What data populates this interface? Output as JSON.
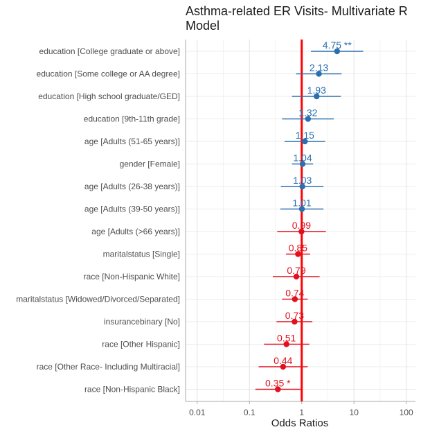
{
  "chart_data": {
    "type": "forest",
    "title": "Asthma-related ER Visits- Multivariate R\nModel",
    "xlabel": "Odds Ratios",
    "x_scale": "log",
    "xlim": [
      0.006,
      150
    ],
    "x_ticks": [
      {
        "value": 0.01,
        "label": "0.01"
      },
      {
        "value": 0.1,
        "label": "0.1"
      },
      {
        "value": 1,
        "label": "1"
      },
      {
        "value": 10,
        "label": "10"
      },
      {
        "value": 100,
        "label": "100"
      }
    ],
    "reference_line": 1,
    "grid": true,
    "colors": {
      "positive": "#2a6fb0",
      "negative": "#e0101e",
      "reference": "#ff0000"
    },
    "terms": [
      {
        "label": "education [College graduate or above]",
        "estimate": 4.75,
        "ci": [
          1.5,
          15.0
        ],
        "text": "4.75 **",
        "direction": "positive"
      },
      {
        "label": "education [Some college or AA degree]",
        "estimate": 2.13,
        "ci": [
          0.78,
          5.8
        ],
        "text": "2.13",
        "direction": "positive"
      },
      {
        "label": "education [High school graduate/GED]",
        "estimate": 1.93,
        "ci": [
          0.65,
          5.6
        ],
        "text": "1.93",
        "direction": "positive"
      },
      {
        "label": "education [9th-11th grade]",
        "estimate": 1.32,
        "ci": [
          0.42,
          4.1
        ],
        "text": "1.32",
        "direction": "positive"
      },
      {
        "label": "age [Adults (51-65 years)]",
        "estimate": 1.15,
        "ci": [
          0.47,
          2.8
        ],
        "text": "1.15",
        "direction": "positive"
      },
      {
        "label": "gender [Female]",
        "estimate": 1.04,
        "ci": [
          0.65,
          1.65
        ],
        "text": "1.04",
        "direction": "positive"
      },
      {
        "label": "age [Adults (26-38 years)]",
        "estimate": 1.03,
        "ci": [
          0.4,
          2.6
        ],
        "text": "1.03",
        "direction": "positive"
      },
      {
        "label": "age [Adults (39-50 years)]",
        "estimate": 1.01,
        "ci": [
          0.39,
          2.6
        ],
        "text": "1.01",
        "direction": "positive"
      },
      {
        "label": "age [Adults (>66 years)]",
        "estimate": 0.99,
        "ci": [
          0.34,
          2.9
        ],
        "text": "0.99",
        "direction": "negative"
      },
      {
        "label": "maritalstatus [Single]",
        "estimate": 0.85,
        "ci": [
          0.5,
          1.45
        ],
        "text": "0.85",
        "direction": "negative"
      },
      {
        "label": "race [Non-Hispanic White]",
        "estimate": 0.79,
        "ci": [
          0.28,
          2.2
        ],
        "text": "0.79",
        "direction": "negative"
      },
      {
        "label": "maritalstatus [Widowed/Divorced/Separated]",
        "estimate": 0.74,
        "ci": [
          0.42,
          1.3
        ],
        "text": "0.74",
        "direction": "negative"
      },
      {
        "label": "insurancebinary [No]",
        "estimate": 0.73,
        "ci": [
          0.33,
          1.6
        ],
        "text": "0.73",
        "direction": "negative"
      },
      {
        "label": "race [Other Hispanic]",
        "estimate": 0.51,
        "ci": [
          0.19,
          1.4
        ],
        "text": "0.51",
        "direction": "negative"
      },
      {
        "label": "race [Other Race- Including Multiracial]",
        "estimate": 0.44,
        "ci": [
          0.15,
          1.3
        ],
        "text": "0.44",
        "direction": "negative"
      },
      {
        "label": "race [Non-Hispanic Black]",
        "estimate": 0.35,
        "ci": [
          0.13,
          0.95
        ],
        "text": "0.35 *",
        "direction": "negative"
      }
    ]
  }
}
